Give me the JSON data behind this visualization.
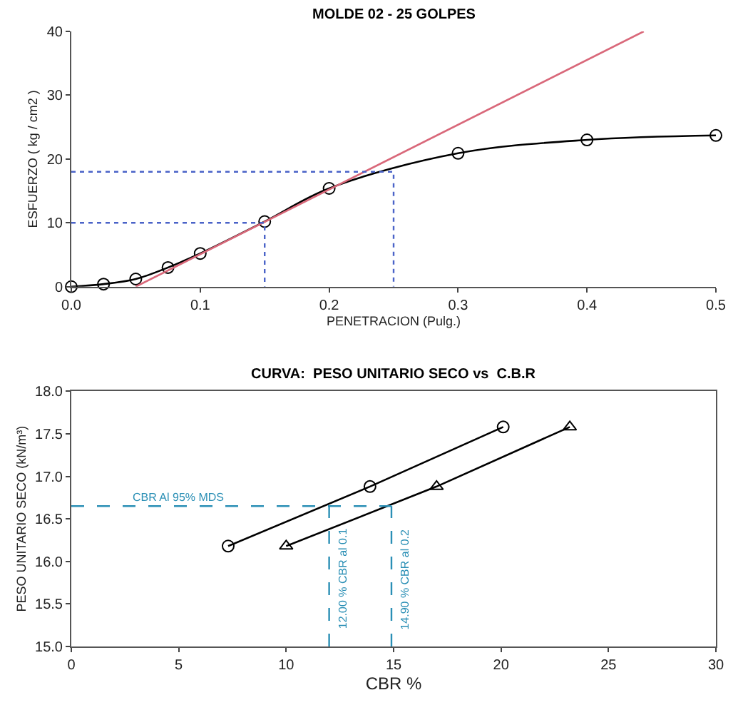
{
  "chart_data": [
    {
      "type": "line",
      "title": "MOLDE 02 - 25 GOLPES",
      "xlabel": "PENETRACION (Pulg.)",
      "ylabel": "ESFUERZO ( kg / cm2 )",
      "xlim": [
        0,
        0.5
      ],
      "xticks": [
        {
          "value": 0,
          "label": "0.0"
        },
        0.1,
        0.2,
        0.3,
        0.4,
        0.5
      ],
      "ylim": [
        0,
        40
      ],
      "yticks": [
        0,
        10,
        20,
        30,
        40
      ],
      "series": [
        {
          "x": [
            0,
            0.025,
            0.05,
            0.075,
            0.1,
            0.15,
            0.2,
            0.3,
            0.4,
            0.5
          ],
          "values": [
            0,
            0.4,
            1.2,
            3,
            5.2,
            10.2,
            15.4,
            20.9,
            23,
            23.7
          ],
          "color": "#000000",
          "marker": "circle",
          "line_style": "solid"
        },
        {
          "x": [
            0.05,
            0.444
          ],
          "values": [
            0,
            40
          ],
          "color": "#d9687a",
          "marker": "none",
          "line_style": "solid"
        },
        {
          "x": [
            0,
            0.15,
            0.15
          ],
          "values": [
            10,
            10,
            0
          ],
          "color": "#4a63c8",
          "marker": "none",
          "line_style": "dotted"
        },
        {
          "x": [
            0,
            0.25,
            0.25
          ],
          "values": [
            18,
            18,
            0
          ],
          "color": "#4a63c8",
          "marker": "none",
          "line_style": "dotted"
        }
      ]
    },
    {
      "type": "line",
      "title": "CURVA:  PESO UNITARIO SECO vs  C.B.R",
      "xlabel": "CBR %",
      "ylabel": "PESO UNITARIO SECO (kN/m³)",
      "xlim": [
        0,
        30
      ],
      "xticks": [
        0,
        5,
        10,
        15,
        20,
        25,
        30
      ],
      "ylim": [
        15,
        18
      ],
      "yticks": [
        {
          "value": 15,
          "label": "15.0"
        },
        15.5,
        {
          "value": 16,
          "label": "16.0"
        },
        16.5,
        {
          "value": 17,
          "label": "17.0"
        },
        17.5,
        {
          "value": 18,
          "label": "18.0"
        }
      ],
      "series": [
        {
          "x": [
            7.3,
            13.9,
            20.1
          ],
          "values": [
            16.18,
            16.88,
            17.58
          ],
          "color": "#000000",
          "marker": "circle",
          "line_style": "solid"
        },
        {
          "x": [
            10,
            17,
            23.2
          ],
          "values": [
            16.18,
            16.88,
            17.58
          ],
          "color": "#000000",
          "marker": "triangle",
          "line_style": "solid"
        },
        {
          "x": [
            0,
            14.9
          ],
          "values": [
            16.65,
            16.65
          ],
          "color": "#2a8fb5",
          "marker": "none",
          "line_style": "dashed"
        },
        {
          "x": [
            12,
            12
          ],
          "values": [
            15,
            16.65
          ],
          "color": "#2a8fb5",
          "marker": "none",
          "line_style": "dashed"
        },
        {
          "x": [
            14.9,
            14.9
          ],
          "values": [
            15,
            16.65
          ],
          "color": "#2a8fb5",
          "marker": "none",
          "line_style": "dashed"
        }
      ],
      "annotations": [
        {
          "text": "CBR Al 95% MDS",
          "x": 5,
          "y": 16.65
        },
        {
          "text": "12.00 % CBR al 0.1",
          "x": 12,
          "y": 15.8
        },
        {
          "text": "14.90 % CBR al 0.2",
          "x": 14.9,
          "y": 15.8
        }
      ]
    }
  ]
}
